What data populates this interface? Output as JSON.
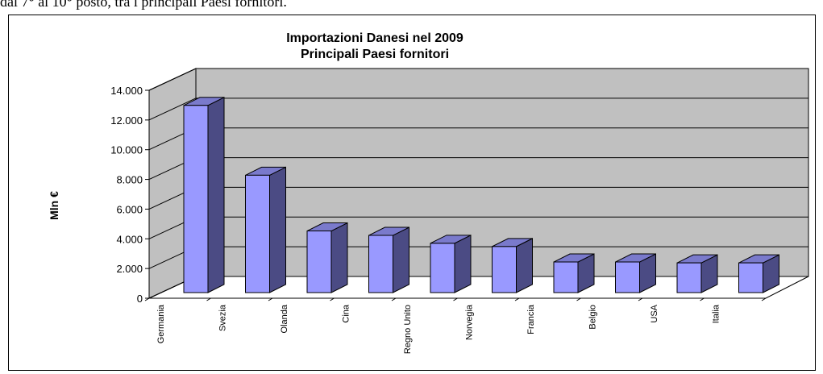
{
  "caption": "dal 7° al 10° posto, tra i principali Paesi fornitori.",
  "chart_data": {
    "type": "bar3d",
    "title": "Importazioni Danesi nel 2009",
    "subtitle": "Principali Paesi fornitori",
    "y_label": "Mln €",
    "categories": [
      "Germania",
      "Svezia",
      "Olanda",
      "Cina",
      "Regno Unito",
      "Norvegia",
      "Francia",
      "Belgio",
      "USA",
      "Italia"
    ],
    "values": [
      12600,
      7900,
      4150,
      3850,
      3320,
      3100,
      2060,
      2060,
      2000,
      2000
    ],
    "color": "#9999ff",
    "side_color": "#4b4b84",
    "top_color": "#7a7acc",
    "wall_color": "#c0c0c0",
    "ylim": [
      0,
      14000
    ],
    "yticks": [
      0,
      {
        "value": 2000,
        "label": "2.000"
      },
      {
        "value": 4000,
        "label": "4.000"
      },
      {
        "value": 6000,
        "label": "6.000"
      },
      {
        "value": 8000,
        "label": "8.000"
      },
      {
        "value": 10000,
        "label": "10.000"
      },
      {
        "value": 12000,
        "label": "12.000"
      },
      {
        "value": 14000,
        "label": "14.000"
      }
    ],
    "grid": true
  }
}
